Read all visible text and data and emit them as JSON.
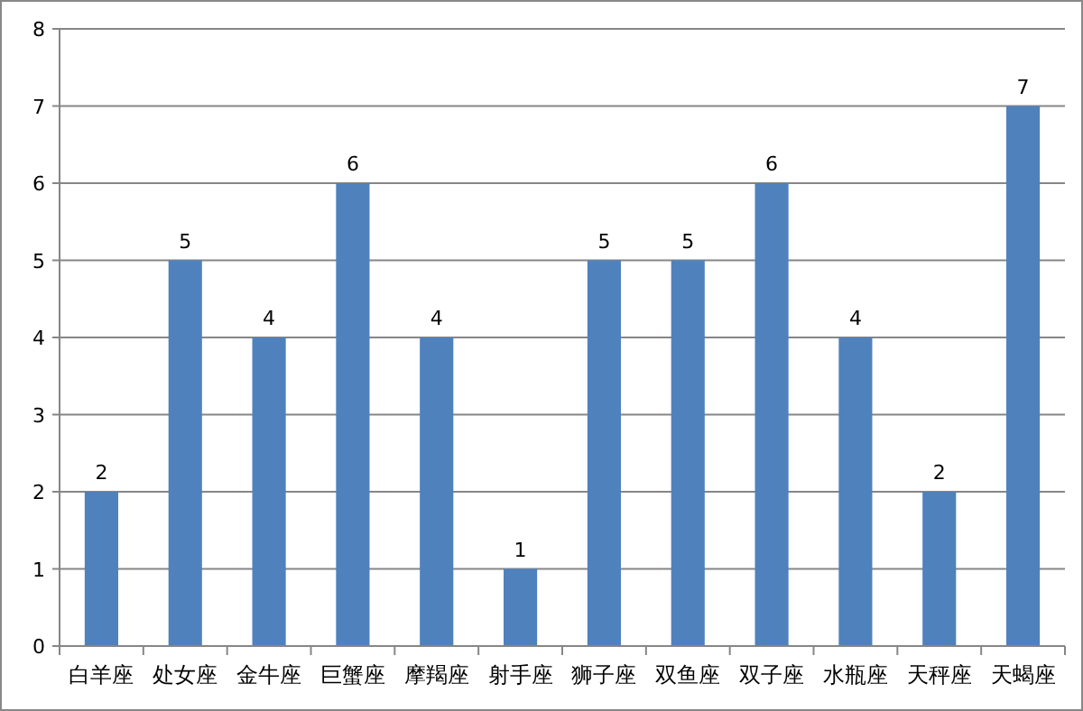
{
  "chart_data": {
    "type": "bar",
    "categories": [
      "白羊座",
      "处女座",
      "金牛座",
      "巨蟹座",
      "摩羯座",
      "射手座",
      "狮子座",
      "双鱼座",
      "双子座",
      "水瓶座",
      "天秤座",
      "天蝎座"
    ],
    "values": [
      2,
      5,
      4,
      6,
      4,
      1,
      5,
      5,
      6,
      4,
      2,
      7
    ],
    "color": "#4f81bd",
    "ylim": [
      0,
      8
    ],
    "yticks": [
      0,
      1,
      2,
      3,
      4,
      5,
      6,
      7,
      8
    ],
    "grid": "y",
    "data_labels": true
  }
}
